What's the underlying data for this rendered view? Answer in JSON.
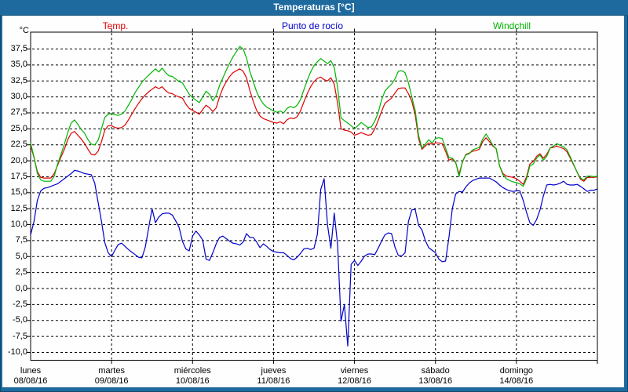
{
  "window": {
    "title": "Temperaturas [°C]"
  },
  "colors": {
    "title_bar": "#1E6A9E",
    "window_border": "#1E6A9E",
    "plot_background": "#fdfefd",
    "grid": "#000000",
    "temp_red": "#DE0000",
    "dewpoint_blue": "#0000CC",
    "windchill_green": "#00B400"
  },
  "chart_data": {
    "type": "line",
    "title": "Temperaturas [°C]",
    "ylabel": "°C",
    "ylim": [
      -11.5,
      40
    ],
    "grid": "dashed",
    "legend_position": "top",
    "y_axis": {
      "unit_label": "°C",
      "ticks": [
        {
          "value": 37.5,
          "label": "37,5"
        },
        {
          "value": 35.0,
          "label": "35,0"
        },
        {
          "value": 32.5,
          "label": "32,5"
        },
        {
          "value": 30.0,
          "label": "30,0"
        },
        {
          "value": 27.5,
          "label": "27,5"
        },
        {
          "value": 25.0,
          "label": "25,0"
        },
        {
          "value": 22.5,
          "label": "22,5"
        },
        {
          "value": 20.0,
          "label": "20,0"
        },
        {
          "value": 17.5,
          "label": "17,5"
        },
        {
          "value": 15.0,
          "label": "15,0"
        },
        {
          "value": 12.5,
          "label": "12,5"
        },
        {
          "value": 10.0,
          "label": "10,0"
        },
        {
          "value": 7.5,
          "label": "7,5"
        },
        {
          "value": 5.0,
          "label": "5,0"
        },
        {
          "value": 2.5,
          "label": "2,5"
        },
        {
          "value": 0.0,
          "label": "0,0"
        },
        {
          "value": -2.5,
          "label": "-2,5"
        },
        {
          "value": -5.0,
          "label": "-5,0"
        },
        {
          "value": -7.5,
          "label": "-7,5"
        },
        {
          "value": -10.0,
          "label": "-10,0"
        }
      ]
    },
    "x_axis": {
      "hours_per_day": 24,
      "days": [
        {
          "name": "lunes",
          "date": "08/08/16"
        },
        {
          "name": "martes",
          "date": "09/08/16"
        },
        {
          "name": "miércoles",
          "date": "10/08/16"
        },
        {
          "name": "jueves",
          "date": "11/08/16"
        },
        {
          "name": "viernes",
          "date": "12/08/16"
        },
        {
          "name": "sábado",
          "date": "13/08/16"
        },
        {
          "name": "domingo",
          "date": "14/08/16"
        }
      ]
    },
    "series": [
      {
        "name": "Temp.",
        "color": "#DE0000",
        "unit": "°C",
        "sampling": "hourly",
        "values": [
          22.4,
          20.5,
          18.3,
          17.4,
          17.3,
          17.3,
          17.3,
          18.0,
          19.3,
          20.6,
          21.8,
          23.3,
          24.3,
          24.6,
          24.0,
          23.4,
          22.7,
          21.8,
          21.0,
          20.9,
          21.5,
          23.0,
          24.8,
          25.5,
          25.5,
          25.2,
          25.1,
          25.2,
          25.6,
          26.4,
          27.3,
          28.2,
          29.0,
          29.7,
          30.3,
          30.8,
          31.2,
          31.6,
          31.3,
          31.6,
          31.0,
          30.6,
          30.5,
          30.2,
          30.0,
          29.8,
          28.9,
          28.2,
          27.9,
          27.6,
          27.3,
          28.0,
          28.7,
          28.3,
          27.7,
          28.3,
          30.0,
          31.4,
          32.4,
          33.2,
          33.8,
          34.1,
          34.4,
          34.0,
          33.0,
          31.0,
          29.3,
          27.9,
          27.0,
          26.6,
          26.4,
          26.2,
          26.0,
          25.9,
          26.1,
          25.8,
          26.4,
          26.7,
          26.6,
          26.9,
          27.8,
          29.2,
          30.5,
          31.6,
          32.4,
          32.9,
          33.1,
          32.7,
          32.5,
          33.0,
          32.0,
          29.0,
          25.0,
          24.8,
          24.7,
          24.5,
          24.0,
          24.2,
          24.4,
          24.2,
          24.0,
          24.1,
          25.0,
          26.3,
          27.7,
          29.0,
          29.4,
          29.8,
          30.6,
          31.3,
          31.4,
          31.4,
          30.5,
          29.3,
          27.2,
          23.5,
          21.8,
          22.3,
          22.8,
          22.6,
          22.8,
          22.8,
          22.7,
          21.5,
          20.1,
          20.3,
          19.7,
          17.9,
          19.8,
          21.0,
          21.2,
          21.5,
          21.6,
          21.8,
          23.0,
          23.6,
          23.0,
          22.3,
          21.9,
          19.2,
          18.0,
          17.6,
          17.5,
          17.4,
          17.2,
          16.8,
          16.3,
          17.5,
          19.5,
          19.9,
          20.7,
          21.1,
          20.4,
          21.0,
          22.0,
          22.1,
          22.3,
          22.1,
          21.9,
          21.4,
          20.4,
          19.3,
          18.2,
          17.1,
          16.8,
          17.4,
          17.4,
          17.4,
          17.5
        ]
      },
      {
        "name": "Punto de rocío",
        "color": "#0000CC",
        "unit": "°C",
        "sampling": "hourly",
        "values": [
          8.4,
          10.5,
          13.8,
          15.3,
          15.7,
          15.8,
          16.0,
          16.2,
          16.4,
          16.8,
          17.2,
          17.6,
          18.0,
          18.5,
          18.4,
          18.2,
          18.0,
          17.9,
          17.8,
          16.5,
          13.5,
          10.5,
          7.2,
          5.6,
          5.0,
          6.0,
          6.9,
          7.1,
          6.6,
          6.1,
          5.7,
          5.3,
          4.9,
          4.8,
          6.5,
          9.5,
          12.5,
          10.3,
          11.2,
          11.7,
          11.8,
          11.8,
          11.5,
          10.6,
          9.6,
          7.4,
          6.2,
          5.9,
          8.2,
          9.0,
          8.4,
          7.6,
          4.6,
          4.4,
          5.6,
          7.0,
          8.0,
          8.2,
          7.8,
          7.4,
          7.1,
          7.0,
          6.8,
          7.3,
          8.6,
          8.0,
          8.0,
          7.3,
          6.4,
          7.0,
          6.6,
          6.1,
          5.8,
          5.7,
          5.6,
          5.6,
          5.2,
          4.7,
          4.5,
          4.9,
          5.5,
          6.2,
          6.3,
          6.1,
          6.3,
          8.5,
          15.5,
          17.2,
          10.0,
          6.3,
          11.8,
          6.8,
          -5.1,
          -2.5,
          -9.0,
          3.8,
          4.4,
          3.6,
          4.3,
          5.1,
          5.4,
          5.4,
          5.3,
          6.3,
          7.4,
          8.4,
          8.7,
          8.6,
          6.5,
          5.2,
          5.1,
          5.6,
          10.5,
          12.3,
          12.4,
          9.9,
          9.2,
          7.5,
          6.4,
          6.0,
          5.6,
          4.6,
          4.2,
          4.3,
          8.0,
          12.5,
          14.8,
          15.2,
          15.1,
          15.9,
          16.5,
          16.9,
          17.1,
          17.3,
          17.3,
          17.3,
          17.3,
          17.0,
          16.7,
          16.2,
          15.8,
          15.5,
          15.3,
          15.2,
          15.3,
          15.3,
          13.8,
          11.9,
          10.3,
          9.9,
          10.8,
          12.3,
          14.5,
          16.2,
          16.3,
          16.2,
          16.3,
          16.5,
          16.8,
          16.3,
          16.2,
          16.2,
          16.3,
          16.0,
          15.6,
          15.2,
          15.4,
          15.4,
          15.6
        ]
      },
      {
        "name": "Windchill",
        "color": "#00B400",
        "unit": "°C",
        "sampling": "hourly",
        "values": [
          22.8,
          20.6,
          18.0,
          17.0,
          16.8,
          16.8,
          16.8,
          17.6,
          19.5,
          21.0,
          22.6,
          24.4,
          25.9,
          26.4,
          25.7,
          24.9,
          24.3,
          23.3,
          22.6,
          22.5,
          23.2,
          25.0,
          26.8,
          27.3,
          27.4,
          27.2,
          27.1,
          27.3,
          27.8,
          28.7,
          29.6,
          30.7,
          31.5,
          32.3,
          32.9,
          33.4,
          33.9,
          34.4,
          33.9,
          34.5,
          33.8,
          33.3,
          33.2,
          32.8,
          32.4,
          32.2,
          31.3,
          30.4,
          29.9,
          29.5,
          29.1,
          30.0,
          30.9,
          30.4,
          29.4,
          30.2,
          31.8,
          33.0,
          34.2,
          35.3,
          36.3,
          37.1,
          37.9,
          37.5,
          36.1,
          34.0,
          32.4,
          30.8,
          29.7,
          28.9,
          28.4,
          28.1,
          27.8,
          27.6,
          27.8,
          27.5,
          28.2,
          28.5,
          28.3,
          28.7,
          29.6,
          31.1,
          32.6,
          33.9,
          34.9,
          35.5,
          36.0,
          35.6,
          35.2,
          35.7,
          34.6,
          31.5,
          26.7,
          26.3,
          25.9,
          25.5,
          25.0,
          25.5,
          26.0,
          25.6,
          25.2,
          25.3,
          26.2,
          27.5,
          29.5,
          30.9,
          31.5,
          32.0,
          32.8,
          34.0,
          34.1,
          33.8,
          32.2,
          30.0,
          27.9,
          24.0,
          22.0,
          22.6,
          23.3,
          22.8,
          23.5,
          23.6,
          23.5,
          22.0,
          20.5,
          20.4,
          19.8,
          17.5,
          19.9,
          20.9,
          21.1,
          21.7,
          21.9,
          22.1,
          23.4,
          24.2,
          23.4,
          22.4,
          21.9,
          19.2,
          17.8,
          17.2,
          16.9,
          16.7,
          16.6,
          16.4,
          16.0,
          17.2,
          19.2,
          19.5,
          20.4,
          20.9,
          20.1,
          20.7,
          22.0,
          22.3,
          22.7,
          22.4,
          22.2,
          21.7,
          20.6,
          19.4,
          18.2,
          17.3,
          17.0,
          17.6,
          17.6,
          17.5,
          17.6
        ]
      }
    ]
  }
}
